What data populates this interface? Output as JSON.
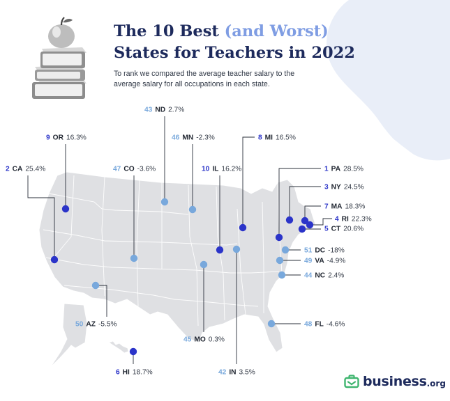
{
  "title": {
    "part1": "The 10 Best ",
    "accent": "(and Worst)",
    "line2": "States for Teachers in 2022"
  },
  "subtitle": "To rank we compared the average teacher salary to the average salary for all occupations in each state.",
  "brand": {
    "name": "business",
    "tld": ".org",
    "icon": "briefcase-icon"
  },
  "colors": {
    "best": "#2b34c9",
    "worst": "#78a8dc",
    "map_fill": "#dfe0e3",
    "title": "#1d2a5c",
    "accent": "#7f9de3"
  },
  "states": [
    {
      "rank": "1",
      "abbr": "PA",
      "value": "28.5%",
      "group": "best"
    },
    {
      "rank": "2",
      "abbr": "CA",
      "value": "25.4%",
      "group": "best"
    },
    {
      "rank": "3",
      "abbr": "NY",
      "value": "24.5%",
      "group": "best"
    },
    {
      "rank": "4",
      "abbr": "RI",
      "value": "22.3%",
      "group": "best"
    },
    {
      "rank": "5",
      "abbr": "CT",
      "value": "20.6%",
      "group": "best"
    },
    {
      "rank": "6",
      "abbr": "HI",
      "value": "18.7%",
      "group": "best"
    },
    {
      "rank": "7",
      "abbr": "MA",
      "value": "18.3%",
      "group": "best"
    },
    {
      "rank": "8",
      "abbr": "MI",
      "value": "16.5%",
      "group": "best"
    },
    {
      "rank": "9",
      "abbr": "OR",
      "value": "16.3%",
      "group": "best"
    },
    {
      "rank": "10",
      "abbr": "IL",
      "value": "16.2%",
      "group": "best"
    },
    {
      "rank": "42",
      "abbr": "IN",
      "value": "3.5%",
      "group": "worst"
    },
    {
      "rank": "43",
      "abbr": "ND",
      "value": "2.7%",
      "group": "worst"
    },
    {
      "rank": "44",
      "abbr": "NC",
      "value": "2.4%",
      "group": "worst"
    },
    {
      "rank": "45",
      "abbr": "MO",
      "value": "0.3%",
      "group": "worst"
    },
    {
      "rank": "46",
      "abbr": "MN",
      "value": "-2.3%",
      "group": "worst"
    },
    {
      "rank": "47",
      "abbr": "CO",
      "value": "-3.6%",
      "group": "worst"
    },
    {
      "rank": "48",
      "abbr": "FL",
      "value": "-4.6%",
      "group": "worst"
    },
    {
      "rank": "49",
      "abbr": "VA",
      "value": "-4.9%",
      "group": "worst"
    },
    {
      "rank": "50",
      "abbr": "AZ",
      "value": "-5.5%",
      "group": "worst"
    },
    {
      "rank": "51",
      "abbr": "DC",
      "value": "-18%",
      "group": "worst"
    }
  ]
}
